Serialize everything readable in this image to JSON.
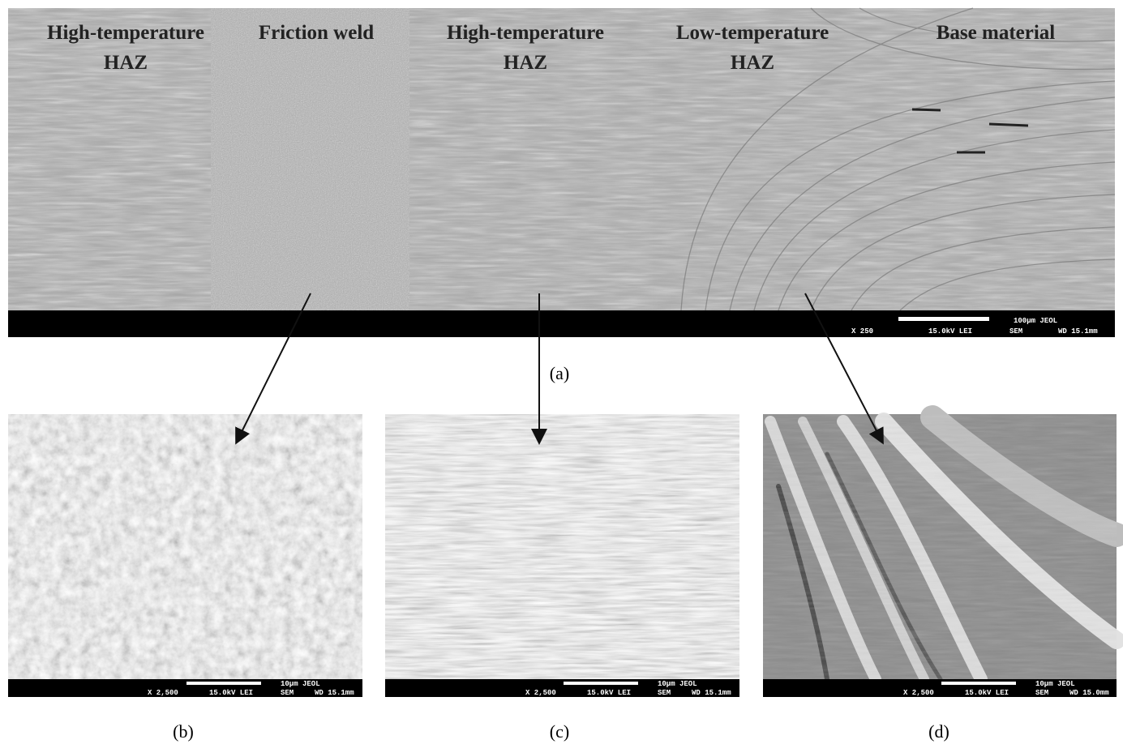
{
  "panel_a": {
    "zone_labels": [
      {
        "lines": [
          "High-temperature",
          "HAZ"
        ]
      },
      {
        "lines": [
          "Friction weld"
        ]
      },
      {
        "lines": [
          "High-temperature",
          "HAZ"
        ]
      },
      {
        "lines": [
          "Low-temperature",
          "HAZ"
        ]
      },
      {
        "lines": [
          "Base material"
        ]
      }
    ],
    "info_bar": {
      "scale": "100µm JEOL",
      "magnification": "X 250",
      "voltage": "15.0kV LEI",
      "mode": "SEM",
      "working_distance": "WD 15.1mm"
    },
    "caption": "(a)"
  },
  "panel_b": {
    "info_bar": {
      "scale": "10µm JEOL",
      "magnification": "X 2,500",
      "voltage": "15.0kV LEI",
      "mode": "SEM",
      "working_distance": "WD 15.1mm"
    },
    "caption": "(b)"
  },
  "panel_c": {
    "info_bar": {
      "scale": "10µm JEOL",
      "magnification": "X 2,500",
      "voltage": "15.0kV LEI",
      "mode": "SEM",
      "working_distance": "WD 15.1mm"
    },
    "caption": "(c)"
  },
  "panel_d": {
    "info_bar": {
      "scale": "10µm JEOL",
      "magnification": "X 2,500",
      "voltage": "15.0kV LEI",
      "mode": "SEM",
      "working_distance": "WD 15.0mm"
    },
    "caption": "(d)"
  }
}
